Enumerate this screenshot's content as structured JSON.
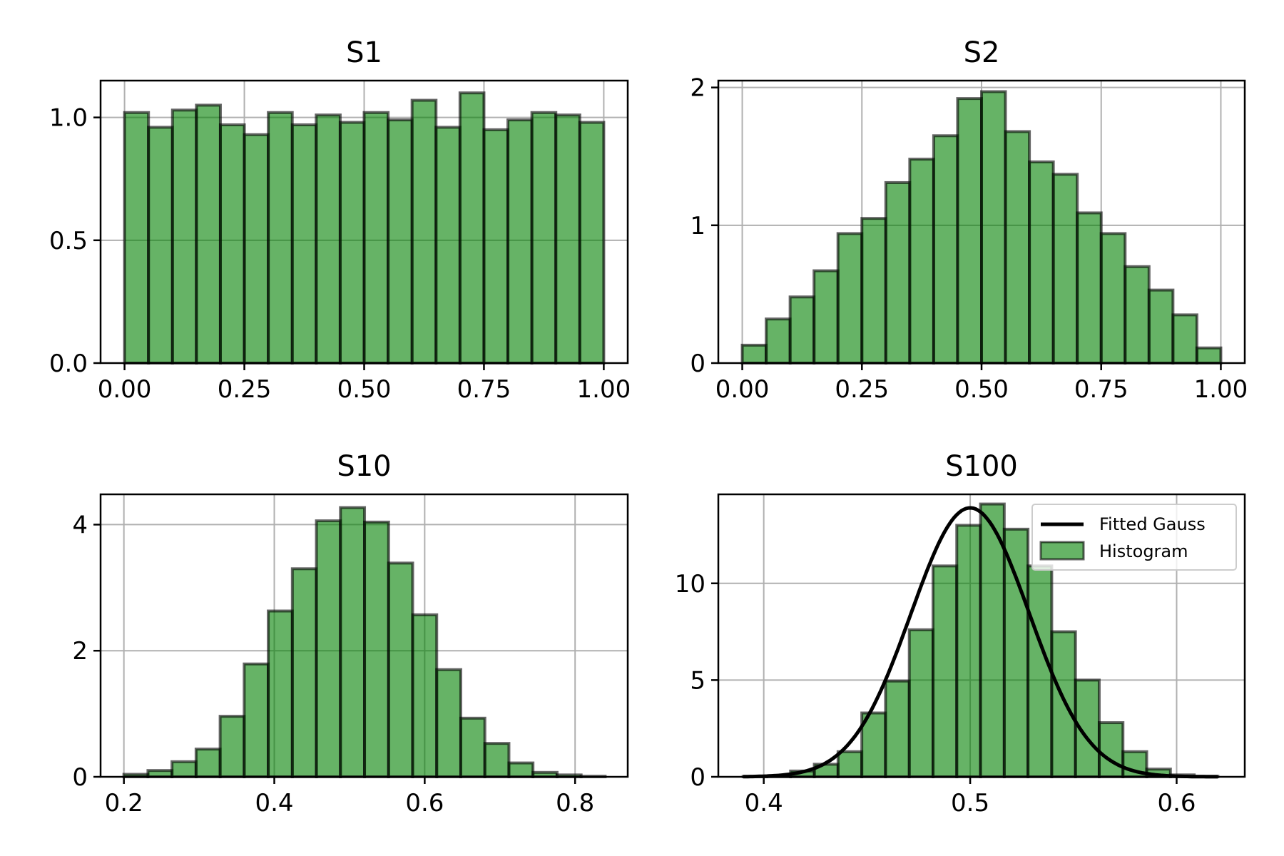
{
  "chart_data": [
    {
      "type": "bar",
      "title": "S1",
      "xlim": [
        -0.05,
        1.05
      ],
      "ylim": [
        0,
        1.15
      ],
      "xticks": [
        0.0,
        0.25,
        0.5,
        0.75,
        1.0
      ],
      "xtick_labels": [
        "0.00",
        "0.25",
        "0.50",
        "0.75",
        "1.00"
      ],
      "yticks": [
        0.0,
        0.5,
        1.0
      ],
      "ytick_labels": [
        "0.0",
        "0.5",
        "1.0"
      ],
      "grid": true,
      "bin_edges": [
        0.0,
        0.05,
        0.1,
        0.15,
        0.2,
        0.25,
        0.3,
        0.35,
        0.4,
        0.45,
        0.5,
        0.55,
        0.6,
        0.65,
        0.7,
        0.75,
        0.8,
        0.85,
        0.9,
        0.95,
        1.0
      ],
      "values": [
        1.02,
        0.96,
        1.03,
        1.05,
        0.97,
        0.93,
        1.02,
        0.97,
        1.01,
        0.98,
        1.02,
        0.99,
        1.07,
        0.96,
        1.1,
        0.95,
        0.99,
        1.02,
        1.01,
        0.98
      ]
    },
    {
      "type": "bar",
      "title": "S2",
      "xlim": [
        -0.05,
        1.05
      ],
      "ylim": [
        0,
        2.05
      ],
      "xticks": [
        0.0,
        0.25,
        0.5,
        0.75,
        1.0
      ],
      "xtick_labels": [
        "0.00",
        "0.25",
        "0.50",
        "0.75",
        "1.00"
      ],
      "yticks": [
        0,
        1,
        2
      ],
      "ytick_labels": [
        "0",
        "1",
        "2"
      ],
      "grid": true,
      "bin_edges": [
        0.0,
        0.05,
        0.1,
        0.15,
        0.2,
        0.25,
        0.3,
        0.35,
        0.4,
        0.45,
        0.5,
        0.55,
        0.6,
        0.65,
        0.7,
        0.75,
        0.8,
        0.85,
        0.9,
        0.95,
        1.0
      ],
      "values": [
        0.13,
        0.32,
        0.48,
        0.67,
        0.94,
        1.05,
        1.31,
        1.48,
        1.65,
        1.92,
        1.97,
        1.68,
        1.46,
        1.37,
        1.09,
        0.94,
        0.7,
        0.53,
        0.35,
        0.11
      ]
    },
    {
      "type": "bar",
      "title": "S10",
      "xlim": [
        0.169,
        0.87
      ],
      "ylim": [
        0,
        4.48
      ],
      "xticks": [
        0.2,
        0.4,
        0.6,
        0.8
      ],
      "xtick_labels": [
        "0.2",
        "0.4",
        "0.6",
        "0.8"
      ],
      "yticks": [
        0,
        2,
        4
      ],
      "ytick_labels": [
        "0",
        "2",
        "4"
      ],
      "grid": true,
      "bin_edges": [
        0.2,
        0.232,
        0.264,
        0.296,
        0.328,
        0.36,
        0.392,
        0.424,
        0.456,
        0.488,
        0.52,
        0.552,
        0.584,
        0.616,
        0.648,
        0.68,
        0.712,
        0.744,
        0.776,
        0.808,
        0.84
      ],
      "values": [
        0.04,
        0.1,
        0.24,
        0.44,
        0.96,
        1.79,
        2.63,
        3.3,
        4.06,
        4.27,
        4.04,
        3.39,
        2.57,
        1.7,
        0.93,
        0.53,
        0.22,
        0.07,
        0.03,
        0.01
      ]
    },
    {
      "type": "bar",
      "title": "S100",
      "xlim": [
        0.378,
        0.633
      ],
      "ylim": [
        0,
        14.6
      ],
      "xticks": [
        0.4,
        0.5,
        0.6
      ],
      "xtick_labels": [
        "0.4",
        "0.5",
        "0.6"
      ],
      "yticks": [
        0,
        5,
        10
      ],
      "ytick_labels": [
        "0",
        "5",
        "10"
      ],
      "grid": true,
      "legend": {
        "position": "upper right",
        "entries": [
          "Fitted Gauss",
          "Histogram"
        ]
      },
      "bin_edges": [
        0.39,
        0.4015,
        0.413,
        0.4245,
        0.436,
        0.4475,
        0.459,
        0.4705,
        0.482,
        0.4935,
        0.505,
        0.5165,
        0.528,
        0.5395,
        0.551,
        0.5625,
        0.574,
        0.5855,
        0.597,
        0.6085,
        0.62
      ],
      "values": [
        0.02,
        0.05,
        0.3,
        0.65,
        1.3,
        3.3,
        4.95,
        7.6,
        10.9,
        13.0,
        14.1,
        12.8,
        10.9,
        7.5,
        5.0,
        2.8,
        1.3,
        0.4,
        0.1,
        0.03
      ],
      "series": [
        {
          "name": "Fitted Gauss",
          "type": "line",
          "mean": 0.5,
          "std": 0.0287,
          "x_range": [
            0.39,
            0.62
          ]
        },
        {
          "name": "Histogram",
          "type": "bar"
        }
      ]
    }
  ]
}
